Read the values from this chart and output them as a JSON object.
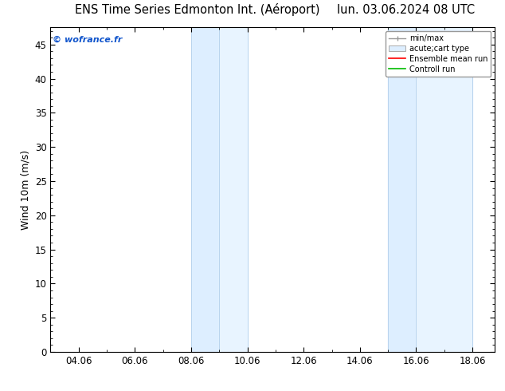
{
  "title_left": "ENS Time Series Edmonton Int. (Aéroport)",
  "title_right": "lun. 03.06.2024 08 UTC",
  "ylabel": "Wind 10m (m/s)",
  "ylim": [
    0,
    47.5
  ],
  "yticks": [
    0,
    5,
    10,
    15,
    20,
    25,
    30,
    35,
    40,
    45
  ],
  "xlim_days": [
    3.0,
    18.8
  ],
  "xtick_positions": [
    4,
    6,
    8,
    10,
    12,
    14,
    16,
    18
  ],
  "xtick_labels": [
    "04.06",
    "06.06",
    "08.06",
    "10.06",
    "12.06",
    "14.06",
    "16.06",
    "18.06"
  ],
  "shaded_bands": [
    {
      "xmin": 8.0,
      "xmax": 9.0,
      "color": "#ddeeff"
    },
    {
      "xmin": 9.0,
      "xmax": 10.0,
      "color": "#e8f4ff"
    },
    {
      "xmin": 15.0,
      "xmax": 16.0,
      "color": "#ddeeff"
    },
    {
      "xmin": 16.0,
      "xmax": 18.0,
      "color": "#e8f4ff"
    }
  ],
  "band_edge_color": "#b8d4ee",
  "background_color": "#ffffff",
  "plot_bg_color": "#ffffff",
  "watermark": "© wofrance.fr",
  "watermark_color": "#1155cc",
  "legend_entries": [
    "min/max",
    "acute;cart type",
    "Ensemble mean run",
    "Controll run"
  ],
  "legend_colors": [
    "#999999",
    "#cccccc",
    "#ff0000",
    "#00bb00"
  ],
  "title_fontsize": 10.5,
  "tick_fontsize": 8.5,
  "ylabel_fontsize": 9,
  "watermark_fontsize": 8
}
